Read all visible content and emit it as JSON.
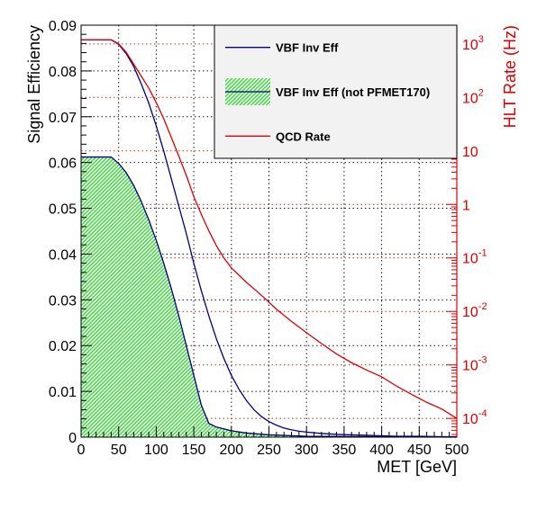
{
  "chart_data": {
    "type": "line",
    "xlabel": "MET [GeV]",
    "ylabel": "Signal Efficiency",
    "y2label": "HLT Rate (Hz)",
    "xlim": [
      0,
      500
    ],
    "ylim": [
      0,
      0.09
    ],
    "y2lim_log10": [
      -4.35,
      3.35
    ],
    "y2scale": "log",
    "grid": true,
    "legend_position": "top-right",
    "x_ticks": [
      "0",
      "50",
      "100",
      "150",
      "200",
      "250",
      "300",
      "350",
      "400",
      "450",
      "500"
    ],
    "y_ticks": [
      "0",
      "0.01",
      "0.02",
      "0.03",
      "0.04",
      "0.05",
      "0.06",
      "0.07",
      "0.08",
      "0.09"
    ],
    "y2_ticks": [
      {
        "base": "10",
        "exp": "3",
        "log10": 3
      },
      {
        "base": "10",
        "exp": "2",
        "log10": 2
      },
      {
        "base": "10",
        "exp": "",
        "log10": 1
      },
      {
        "base": "1",
        "exp": "",
        "log10": 0
      },
      {
        "base": "10",
        "exp": "-1",
        "log10": -1
      },
      {
        "base": "10",
        "exp": "-2",
        "log10": -2
      },
      {
        "base": "10",
        "exp": "-3",
        "log10": -3
      },
      {
        "base": "10",
        "exp": "-4",
        "log10": -4
      }
    ],
    "legend": [
      {
        "label": "VBF Inv Eff",
        "style": "line",
        "color": "#000080"
      },
      {
        "label": "VBF Inv Eff (not PFMET170)",
        "style": "fill",
        "color": "#000080",
        "fill": "#4ad54a"
      },
      {
        "label": "QCD Rate",
        "style": "line",
        "color": "#dd0000"
      }
    ],
    "series": [
      {
        "name": "VBF Inv Eff",
        "axis": "left",
        "color": "#000080",
        "x": [
          0,
          40,
          50,
          60,
          70,
          80,
          90,
          100,
          110,
          120,
          130,
          140,
          150,
          160,
          170,
          180,
          190,
          200,
          210,
          220,
          230,
          240,
          250,
          260,
          270,
          280,
          290,
          300,
          320,
          340,
          360,
          380,
          400,
          420,
          450,
          480,
          500
        ],
        "y": [
          0.0868,
          0.0868,
          0.0858,
          0.0838,
          0.081,
          0.0772,
          0.073,
          0.068,
          0.0625,
          0.0565,
          0.0505,
          0.0445,
          0.038,
          0.032,
          0.0265,
          0.0215,
          0.0172,
          0.0135,
          0.0105,
          0.008,
          0.006,
          0.0045,
          0.0034,
          0.0026,
          0.002,
          0.0016,
          0.0013,
          0.0011,
          0.0008,
          0.0006,
          0.0005,
          0.0004,
          0.0003,
          0.0002,
          0.0002,
          0.0001,
          0.0001
        ]
      },
      {
        "name": "VBF Inv Eff (not PFMET170)",
        "axis": "left",
        "color": "#000080",
        "fill": "#4ad54a",
        "x": [
          0,
          40,
          50,
          60,
          70,
          80,
          90,
          100,
          110,
          120,
          130,
          140,
          150,
          160,
          170,
          180,
          200,
          220,
          250,
          300,
          400,
          500
        ],
        "y": [
          0.0612,
          0.0612,
          0.0598,
          0.0578,
          0.055,
          0.0515,
          0.0475,
          0.043,
          0.038,
          0.0325,
          0.0265,
          0.02,
          0.0135,
          0.007,
          0.003,
          0.0022,
          0.0014,
          0.0009,
          0.0005,
          0.0002,
          0.0001,
          0.0
        ]
      },
      {
        "name": "QCD Rate",
        "axis": "right",
        "color": "#dd0000",
        "x": [
          0,
          40,
          50,
          60,
          70,
          80,
          90,
          100,
          110,
          120,
          130,
          140,
          150,
          160,
          170,
          180,
          190,
          200,
          220,
          240,
          260,
          280,
          300,
          320,
          340,
          360,
          380,
          400,
          420,
          440,
          460,
          480,
          500
        ],
        "y": [
          1200,
          1200,
          1000,
          700,
          420,
          250,
          150,
          80,
          40,
          18,
          8,
          3.5,
          1.4,
          0.65,
          0.32,
          0.17,
          0.1,
          0.065,
          0.035,
          0.02,
          0.011,
          0.0065,
          0.004,
          0.0025,
          0.0016,
          0.0011,
          0.0008,
          0.0006,
          0.0004,
          0.00028,
          0.0002,
          0.00015,
          0.0001
        ]
      }
    ]
  }
}
